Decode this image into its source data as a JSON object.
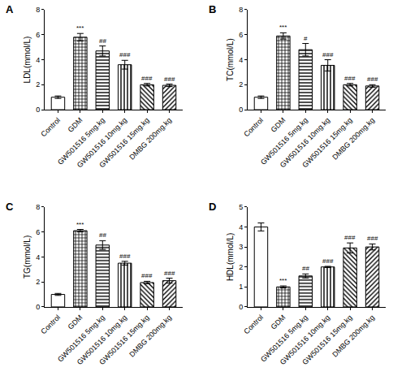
{
  "chart_data": [
    {
      "type": "bar",
      "title": "A",
      "y_label": "LDL(mmol/L)",
      "color": "#ffffff",
      "categories": [
        "Control",
        "GDM",
        "GW501516 5mg.kg",
        "GW501516 10mg.kg",
        "GW501516 15mg.kg",
        "DMBG 200mg.kg"
      ],
      "values": [
        1.0,
        5.8,
        4.7,
        3.6,
        2.0,
        1.95
      ],
      "errors": [
        0.1,
        0.3,
        0.4,
        0.35,
        0.1,
        0.1
      ],
      "annotations": [
        {
          "category": "GDM",
          "text": "***"
        },
        {
          "category": "GW501516 5mg.kg",
          "text": "##"
        },
        {
          "category": "GW501516 10mg.kg",
          "text": "###"
        },
        {
          "category": "GW501516 15mg.kg",
          "text": "###"
        },
        {
          "category": "DMBG 200mg.kg",
          "text": "###"
        }
      ],
      "ylim": [
        0,
        8
      ],
      "yticks": [
        0,
        2,
        4,
        6,
        8
      ],
      "grid": false
    },
    {
      "type": "bar",
      "title": "B",
      "y_label": "TC(mmol/L)",
      "color": "#ffffff",
      "categories": [
        "Control",
        "GDM",
        "GW501516 5mg.kg",
        "GW501516 10mg.kg",
        "GW501516 15mg.kg",
        "DMBG 200mg.kg"
      ],
      "values": [
        1.0,
        5.9,
        4.8,
        3.55,
        2.0,
        1.9
      ],
      "errors": [
        0.1,
        0.25,
        0.5,
        0.45,
        0.1,
        0.1
      ],
      "annotations": [
        {
          "category": "GDM",
          "text": "***"
        },
        {
          "category": "GW501516 5mg.kg",
          "text": "#"
        },
        {
          "category": "GW501516 10mg.kg",
          "text": "###"
        },
        {
          "category": "GW501516 15mg.kg",
          "text": "###"
        },
        {
          "category": "DMBG 200mg.kg",
          "text": "###"
        }
      ],
      "ylim": [
        0,
        8
      ],
      "yticks": [
        0,
        2,
        4,
        6,
        8
      ],
      "grid": false
    },
    {
      "type": "bar",
      "title": "C",
      "y_label": "TG(mmol/L)",
      "color": "#ffffff",
      "categories": [
        "Control",
        "GDM",
        "GW501516 5mg.kg",
        "GW501516 10mg.kg",
        "GW501516 15mg.kg",
        "DMBG 200mg.kg"
      ],
      "values": [
        1.0,
        6.1,
        4.95,
        3.5,
        1.95,
        2.1
      ],
      "errors": [
        0.08,
        0.1,
        0.35,
        0.15,
        0.1,
        0.2
      ],
      "annotations": [
        {
          "category": "GDM",
          "text": "***"
        },
        {
          "category": "GW501516 5mg.kg",
          "text": "##"
        },
        {
          "category": "GW501516 10mg.kg",
          "text": "###"
        },
        {
          "category": "GW501516 15mg.kg",
          "text": "###"
        },
        {
          "category": "DMBG 200mg.kg",
          "text": "###"
        }
      ],
      "ylim": [
        0,
        8
      ],
      "yticks": [
        0,
        2,
        4,
        6,
        8
      ],
      "grid": false
    },
    {
      "type": "bar",
      "title": "D",
      "y_label": "HDL(mmol/L)",
      "color": "#ffffff",
      "categories": [
        "Control",
        "GDM",
        "GW501516 5mg.kg",
        "GW501516 10mg.kg",
        "GW501516 15mg.kg",
        "DMBG 200mg.kg"
      ],
      "values": [
        4.0,
        1.0,
        1.55,
        2.0,
        2.95,
        3.0
      ],
      "errors": [
        0.2,
        0.05,
        0.1,
        0.03,
        0.25,
        0.15
      ],
      "annotations": [
        {
          "category": "GDM",
          "text": "***"
        },
        {
          "category": "GW501516 5mg.kg",
          "text": "##"
        },
        {
          "category": "GW501516 10mg.kg",
          "text": "###"
        },
        {
          "category": "GW501516 15mg.kg",
          "text": "###"
        },
        {
          "category": "DMBG 200mg.kg",
          "text": "###"
        }
      ],
      "ylim": [
        0,
        5
      ],
      "yticks": [
        0,
        1,
        2,
        3,
        4,
        5
      ],
      "grid": false
    }
  ]
}
